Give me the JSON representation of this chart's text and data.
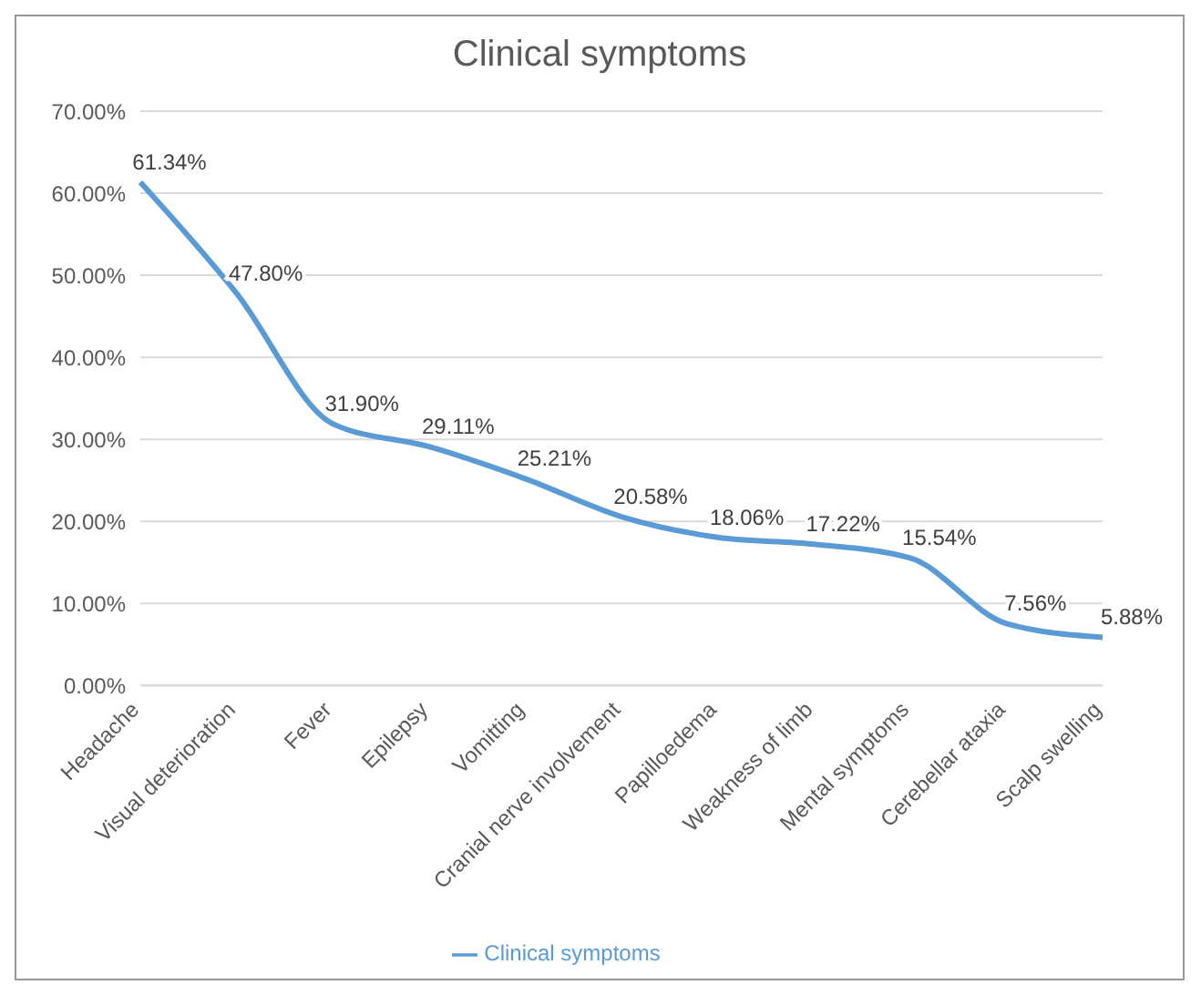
{
  "chart_data": {
    "type": "line",
    "title": "Clinical symptoms",
    "categories": [
      "Headache",
      "Visual deterioration",
      "Fever",
      "Epilepsy",
      "Vomitting",
      "Cranial nerve involvement",
      "Papilloedema",
      "Weakness of limb",
      "Mental symptoms",
      "Cerebellar ataxia",
      "Scalp swelling"
    ],
    "series": [
      {
        "name": "Clinical symptoms",
        "color": "#5b9bd5",
        "values": [
          61.34,
          47.8,
          31.9,
          29.11,
          25.21,
          20.58,
          18.06,
          17.22,
          15.54,
          7.56,
          5.88
        ],
        "value_labels": [
          "61.34%",
          "47.80%",
          "31.90%",
          "29.11%",
          "25.21%",
          "20.58%",
          "18.06%",
          "17.22%",
          "15.54%",
          "7.56%",
          "5.88%"
        ]
      }
    ],
    "ylim": [
      0,
      70
    ],
    "yticks": [
      {
        "value": 0,
        "label": "0.00%"
      },
      {
        "value": 10,
        "label": "10.00%"
      },
      {
        "value": 20,
        "label": "20.00%"
      },
      {
        "value": 30,
        "label": "30.00%"
      },
      {
        "value": 40,
        "label": "40.00%"
      },
      {
        "value": 50,
        "label": "50.00%"
      },
      {
        "value": 60,
        "label": "60.00%"
      },
      {
        "value": 70,
        "label": "70.00%"
      }
    ],
    "grid": "y",
    "legend": "bottom",
    "marker": "none",
    "line_style": "solid"
  }
}
